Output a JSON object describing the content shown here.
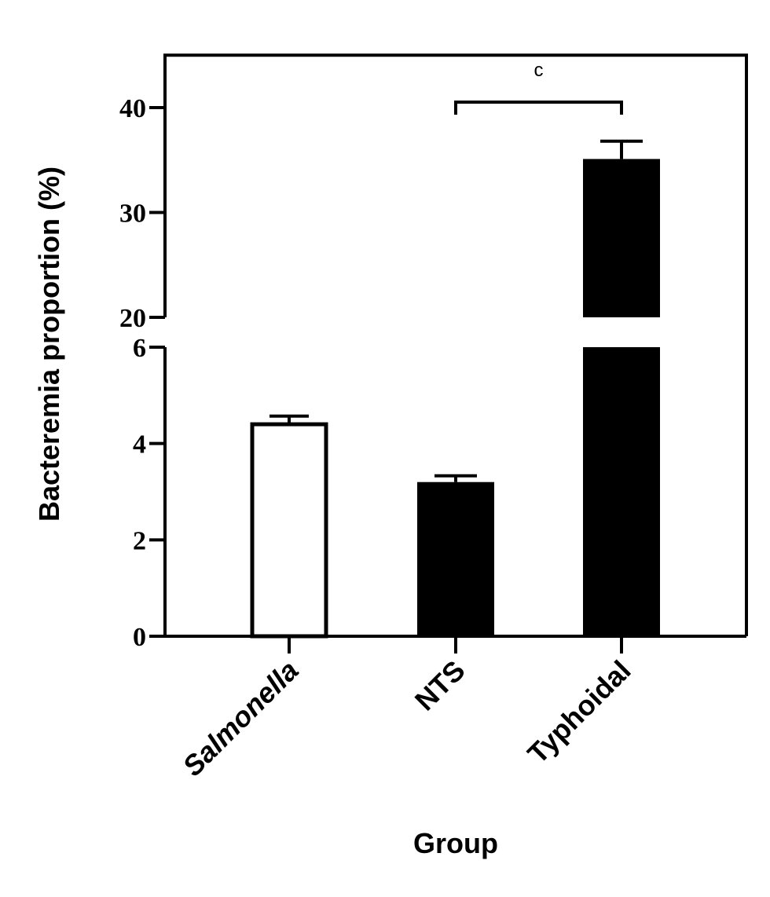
{
  "chart_data": {
    "type": "bar",
    "categories": [
      "Salmonella",
      "NTS",
      "Typhoidal"
    ],
    "values": [
      4.4,
      3.2,
      35.1
    ],
    "errors": [
      0.17,
      0.13,
      1.7
    ],
    "ylabel": "Bacteremia proportion (%)",
    "xlabel": "Group",
    "y_axis_break": true,
    "lower_segment": {
      "ylim": [
        0,
        6
      ],
      "ticks": [
        0,
        2,
        4,
        6
      ]
    },
    "upper_segment": {
      "ylim": [
        20,
        45
      ],
      "ticks": [
        20,
        30,
        40
      ]
    },
    "bar_fills": [
      "#ffffff",
      "#000000",
      "#000000"
    ],
    "bar_outline": "#000000",
    "italic_categories": [
      "Salmonella"
    ],
    "significance": {
      "from": "NTS",
      "to": "Typhoidal",
      "label": "c"
    },
    "grid": false,
    "legend": "none"
  }
}
